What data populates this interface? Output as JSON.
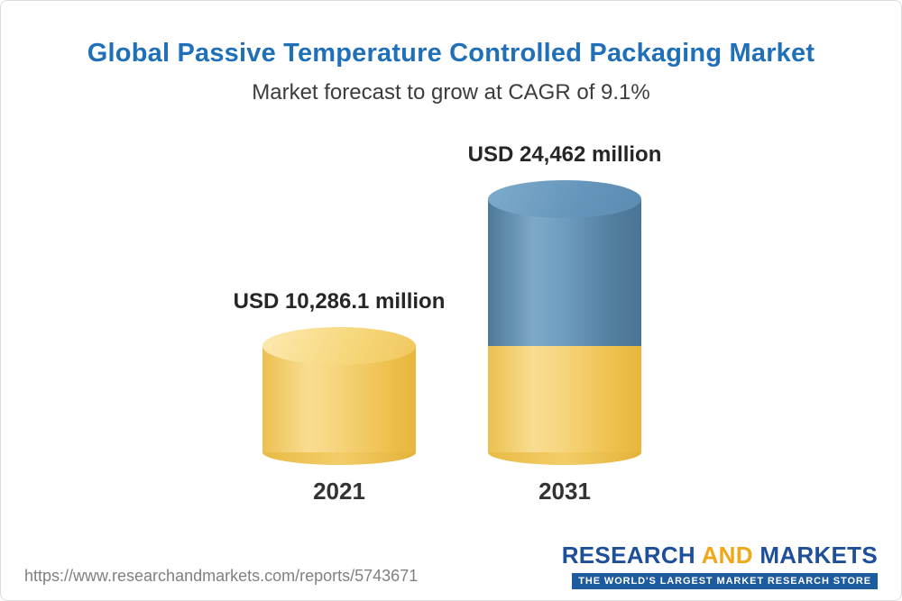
{
  "header": {
    "title": "Global Passive Temperature Controlled Packaging Market",
    "subtitle": "Market forecast to grow at CAGR of 9.1%"
  },
  "chart_data": {
    "type": "bar",
    "categories": [
      "2021",
      "2031"
    ],
    "values": [
      10286.1,
      24462
    ],
    "value_labels": [
      "USD 10,286.1 million",
      "USD 24,462 million"
    ],
    "unit": "USD million",
    "cagr_pct": 9.1,
    "title": "Global Passive Temperature Controlled Packaging Market",
    "subtitle": "Market forecast to grow at CAGR of 9.1%",
    "ylim": [
      0,
      26000
    ],
    "grid": false,
    "legend": "none",
    "colors": {
      "base_segment": "#f2c95f",
      "growth_segment": "#5e8fb4"
    },
    "notes": "3D cylinder bars; the 2031 bar is stacked: bottom yellow segment equals the 2021 value, blue top segment is the growth to 24,462"
  },
  "footer": {
    "url": "https://www.researchandmarkets.com/reports/5743671",
    "logo": {
      "word1": "RESEARCH",
      "word2": "AND",
      "word3": "MARKETS",
      "tagline": "THE WORLD'S LARGEST MARKET RESEARCH STORE"
    }
  },
  "colors": {
    "title_blue": "#1f70b8",
    "logo_blue": "#1d4f9a",
    "logo_yellow": "#f0a818"
  }
}
